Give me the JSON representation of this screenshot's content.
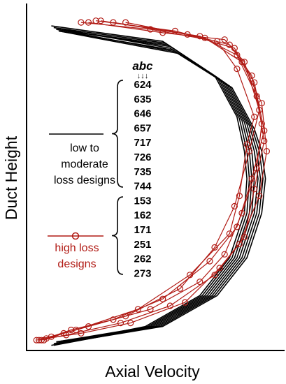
{
  "chart_data": {
    "type": "line",
    "xlabel": "Axial Velocity",
    "ylabel": "Duct Height",
    "xlim": [
      0,
      1
    ],
    "ylim": [
      0,
      1
    ],
    "grid": false,
    "header_label": "abc",
    "header_arrows": "↓↓↓",
    "groups": [
      {
        "name": "low to moderate loss designs",
        "label_lines": [
          "low to",
          "moderate",
          "loss designs"
        ],
        "color": "#000000",
        "marker": "none",
        "codes": [
          "624",
          "635",
          "646",
          "657",
          "717",
          "726",
          "735",
          "744"
        ]
      },
      {
        "name": "high loss designs",
        "label_lines": [
          "high loss",
          "designs"
        ],
        "color": "#b11a14",
        "marker": "circle-open",
        "codes": [
          "153",
          "162",
          "171",
          "251",
          "262",
          "273"
        ]
      }
    ],
    "series": [
      {
        "group": 0,
        "x": [
          0.1,
          0.55,
          0.76,
          0.85,
          0.88,
          0.89,
          0.88,
          0.82,
          0.7,
          0.48,
          0.1
        ],
        "y": [
          0.945,
          0.9,
          0.8,
          0.68,
          0.58,
          0.5,
          0.4,
          0.27,
          0.16,
          0.07,
          0.015
        ]
      },
      {
        "group": 0,
        "x": [
          0.11,
          0.56,
          0.77,
          0.86,
          0.89,
          0.9,
          0.89,
          0.83,
          0.71,
          0.49,
          0.11
        ],
        "y": [
          0.94,
          0.895,
          0.795,
          0.675,
          0.58,
          0.5,
          0.4,
          0.27,
          0.16,
          0.07,
          0.02
        ]
      },
      {
        "group": 0,
        "x": [
          0.12,
          0.57,
          0.78,
          0.87,
          0.9,
          0.91,
          0.9,
          0.84,
          0.72,
          0.5,
          0.12
        ],
        "y": [
          0.935,
          0.89,
          0.79,
          0.67,
          0.58,
          0.5,
          0.4,
          0.27,
          0.16,
          0.07,
          0.025
        ]
      },
      {
        "group": 0,
        "x": [
          0.12,
          0.58,
          0.79,
          0.88,
          0.91,
          0.92,
          0.91,
          0.85,
          0.73,
          0.51,
          0.12
        ],
        "y": [
          0.935,
          0.885,
          0.785,
          0.665,
          0.58,
          0.5,
          0.4,
          0.27,
          0.16,
          0.07,
          0.02
        ]
      },
      {
        "group": 0,
        "x": [
          0.11,
          0.58,
          0.8,
          0.89,
          0.92,
          0.935,
          0.92,
          0.86,
          0.74,
          0.52,
          0.11
        ],
        "y": [
          0.94,
          0.88,
          0.78,
          0.66,
          0.58,
          0.5,
          0.4,
          0.27,
          0.16,
          0.07,
          0.015
        ]
      },
      {
        "group": 0,
        "x": [
          0.13,
          0.59,
          0.81,
          0.9,
          0.93,
          0.945,
          0.93,
          0.87,
          0.75,
          0.53,
          0.13
        ],
        "y": [
          0.93,
          0.875,
          0.775,
          0.655,
          0.58,
          0.5,
          0.4,
          0.27,
          0.16,
          0.07,
          0.02
        ]
      },
      {
        "group": 0,
        "x": [
          0.12,
          0.6,
          0.82,
          0.91,
          0.94,
          0.955,
          0.94,
          0.88,
          0.76,
          0.54,
          0.12
        ],
        "y": [
          0.935,
          0.87,
          0.77,
          0.65,
          0.58,
          0.5,
          0.4,
          0.27,
          0.16,
          0.07,
          0.025
        ]
      },
      {
        "group": 0,
        "x": [
          0.13,
          0.61,
          0.83,
          0.92,
          0.95,
          0.965,
          0.95,
          0.89,
          0.77,
          0.55,
          0.13
        ],
        "y": [
          0.93,
          0.865,
          0.765,
          0.645,
          0.58,
          0.5,
          0.4,
          0.27,
          0.16,
          0.07,
          0.02
        ]
      },
      {
        "group": 1,
        "x": [
          0.22,
          0.5,
          0.77,
          0.85,
          0.92,
          0.89,
          0.86,
          0.82,
          0.66,
          0.45,
          0.2,
          0.04
        ],
        "y": [
          0.955,
          0.935,
          0.9,
          0.82,
          0.68,
          0.6,
          0.45,
          0.34,
          0.22,
          0.12,
          0.06,
          0.03
        ]
      },
      {
        "group": 1,
        "x": [
          0.25,
          0.55,
          0.8,
          0.88,
          0.94,
          0.9,
          0.84,
          0.76,
          0.62,
          0.4,
          0.15,
          0.07
        ],
        "y": [
          0.955,
          0.925,
          0.905,
          0.84,
          0.7,
          0.58,
          0.42,
          0.3,
          0.18,
          0.1,
          0.05,
          0.03
        ]
      },
      {
        "group": 1,
        "x": [
          0.28,
          0.6,
          0.82,
          0.91,
          0.95,
          0.93,
          0.87,
          0.8,
          0.7,
          0.5,
          0.25,
          0.1
        ],
        "y": [
          0.96,
          0.93,
          0.89,
          0.8,
          0.66,
          0.53,
          0.4,
          0.28,
          0.2,
          0.12,
          0.07,
          0.04
        ]
      },
      {
        "group": 1,
        "x": [
          0.3,
          0.65,
          0.84,
          0.92,
          0.96,
          0.91,
          0.85,
          0.74,
          0.55,
          0.35,
          0.18,
          0.06
        ],
        "y": [
          0.96,
          0.92,
          0.88,
          0.78,
          0.64,
          0.5,
          0.36,
          0.26,
          0.15,
          0.09,
          0.06,
          0.03
        ]
      },
      {
        "group": 1,
        "x": [
          0.35,
          0.7,
          0.85,
          0.93,
          0.96,
          0.92,
          0.88,
          0.78,
          0.64,
          0.42,
          0.22,
          0.08
        ],
        "y": [
          0.955,
          0.915,
          0.86,
          0.74,
          0.61,
          0.47,
          0.33,
          0.24,
          0.14,
          0.08,
          0.05,
          0.035
        ]
      },
      {
        "group": 1,
        "x": [
          0.4,
          0.72,
          0.87,
          0.95,
          0.97,
          0.94,
          0.86,
          0.76,
          0.58,
          0.38,
          0.16,
          0.05
        ],
        "y": [
          0.955,
          0.91,
          0.84,
          0.72,
          0.58,
          0.45,
          0.31,
          0.22,
          0.13,
          0.08,
          0.045,
          0.03
        ]
      }
    ]
  }
}
